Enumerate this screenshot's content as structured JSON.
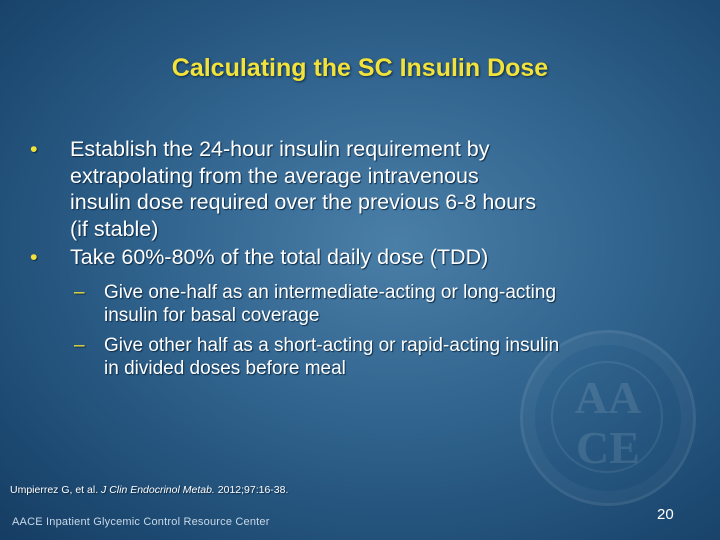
{
  "slide": {
    "title": "Calculating the SC Insulin Dose",
    "bullets": [
      {
        "marker": "•",
        "lines": [
          "Establish the 24-hour insulin requirement by",
          "extrapolating from the average intravenous",
          "insulin dose required over the previous 6-8 hours",
          "(if stable)"
        ]
      },
      {
        "marker": "•",
        "lines": [
          "Take 60%-80% of the total daily dose (TDD)"
        ],
        "subbullets": [
          {
            "marker": "–",
            "lines": [
              "Give one-half as an intermediate-acting or long-acting",
              "insulin for basal coverage"
            ]
          },
          {
            "marker": "–",
            "lines": [
              "Give other half as a short-acting or rapid-acting insulin",
              "in divided doses before meal"
            ]
          }
        ]
      }
    ],
    "citation": {
      "authors": "Umpierrez G, et al. ",
      "journal": "J Clin Endocrinol Metab.",
      "details": " 2012;97:16-38."
    },
    "footer": "AACE Inpatient Glycemic Control Resource Center",
    "page_number": "20",
    "watermark": {
      "text": "AACE"
    }
  }
}
